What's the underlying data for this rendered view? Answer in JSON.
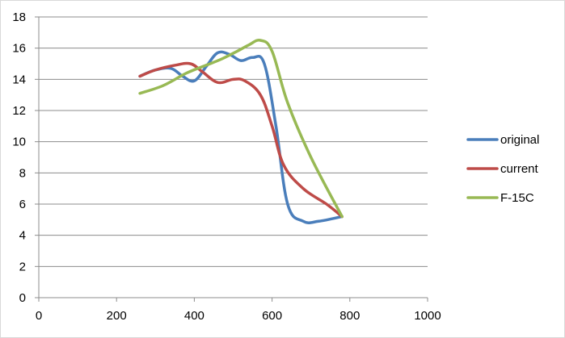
{
  "chart_data": {
    "type": "line",
    "title": "",
    "xlabel": "",
    "ylabel": "",
    "xlim": [
      0,
      1000
    ],
    "ylim": [
      0,
      18
    ],
    "x_ticks": [
      0,
      200,
      400,
      600,
      800,
      1000
    ],
    "y_ticks": [
      0,
      2,
      4,
      6,
      8,
      10,
      12,
      14,
      16,
      18
    ],
    "grid": "horizontal",
    "legend_position": "right",
    "smooth": true,
    "series": [
      {
        "name": "original",
        "color": "#4a7ebb",
        "points": [
          [
            260,
            14.2
          ],
          [
            300,
            14.6
          ],
          [
            340,
            14.7
          ],
          [
            370,
            14.2
          ],
          [
            400,
            13.9
          ],
          [
            430,
            14.8
          ],
          [
            460,
            15.7
          ],
          [
            490,
            15.6
          ],
          [
            520,
            15.2
          ],
          [
            550,
            15.4
          ],
          [
            580,
            15.0
          ],
          [
            610,
            11.0
          ],
          [
            640,
            6.0
          ],
          [
            680,
            4.9
          ],
          [
            720,
            4.9
          ],
          [
            780,
            5.2
          ]
        ]
      },
      {
        "name": "current",
        "color": "#be4b48",
        "points": [
          [
            260,
            14.2
          ],
          [
            300,
            14.6
          ],
          [
            350,
            14.9
          ],
          [
            390,
            15.0
          ],
          [
            420,
            14.5
          ],
          [
            460,
            13.8
          ],
          [
            500,
            14.0
          ],
          [
            530,
            13.9
          ],
          [
            570,
            13.0
          ],
          [
            600,
            11.0
          ],
          [
            630,
            8.5
          ],
          [
            680,
            7.0
          ],
          [
            740,
            6.0
          ],
          [
            780,
            5.2
          ]
        ]
      },
      {
        "name": "F-15C",
        "color": "#98b954",
        "points": [
          [
            260,
            13.1
          ],
          [
            320,
            13.6
          ],
          [
            380,
            14.4
          ],
          [
            430,
            14.9
          ],
          [
            470,
            15.3
          ],
          [
            510,
            15.8
          ],
          [
            540,
            16.2
          ],
          [
            570,
            16.5
          ],
          [
            600,
            15.8
          ],
          [
            640,
            12.5
          ],
          [
            700,
            9.0
          ],
          [
            780,
            5.2
          ]
        ]
      }
    ]
  }
}
